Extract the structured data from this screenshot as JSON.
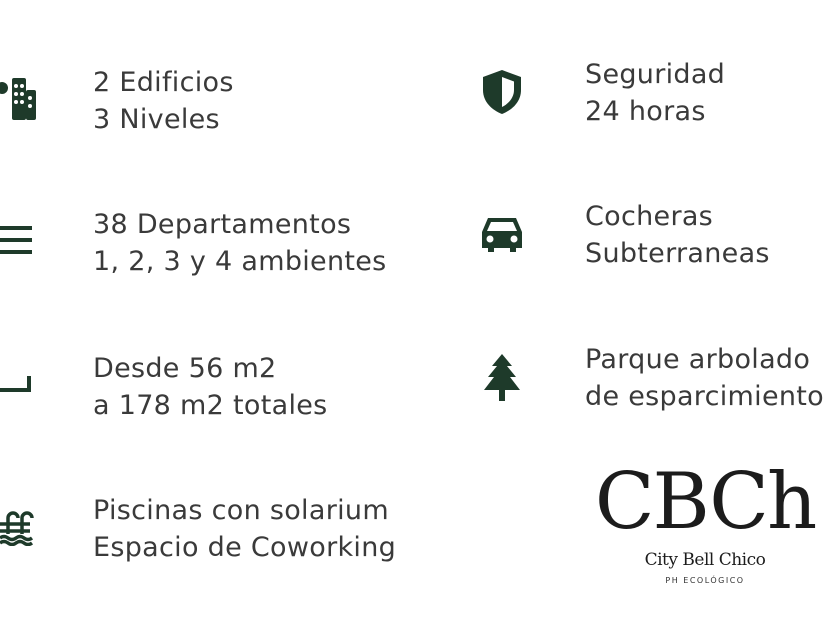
{
  "colors": {
    "text": "#3a3a3a",
    "icon": "#1e3a2a"
  },
  "features": [
    {
      "icon": "building-icon",
      "line1": "2 Edificios",
      "line2": "3 Niveles"
    },
    {
      "icon": "list-icon",
      "line1": "38 Departamentos",
      "line2": "1, 2, 3 y 4 ambientes"
    },
    {
      "icon": "floor-plan-icon",
      "line1": "Desde 56 m2",
      "line2": "a 178 m2 totales"
    },
    {
      "icon": "pool-icon",
      "line1": "Piscinas con solarium",
      "line2": "Espacio de Coworking"
    },
    {
      "icon": "shield-icon",
      "line1": "Seguridad",
      "line2": "24 horas"
    },
    {
      "icon": "car-icon",
      "line1": "Cocheras",
      "line2": "Subterraneas"
    },
    {
      "icon": "tree-icon",
      "line1": "Parque arbolado",
      "line2": "de esparcimiento"
    }
  ],
  "logo": {
    "mark": "CBCh",
    "name": "City Bell Chico",
    "tagline": "PH ECOLÓGICO"
  }
}
